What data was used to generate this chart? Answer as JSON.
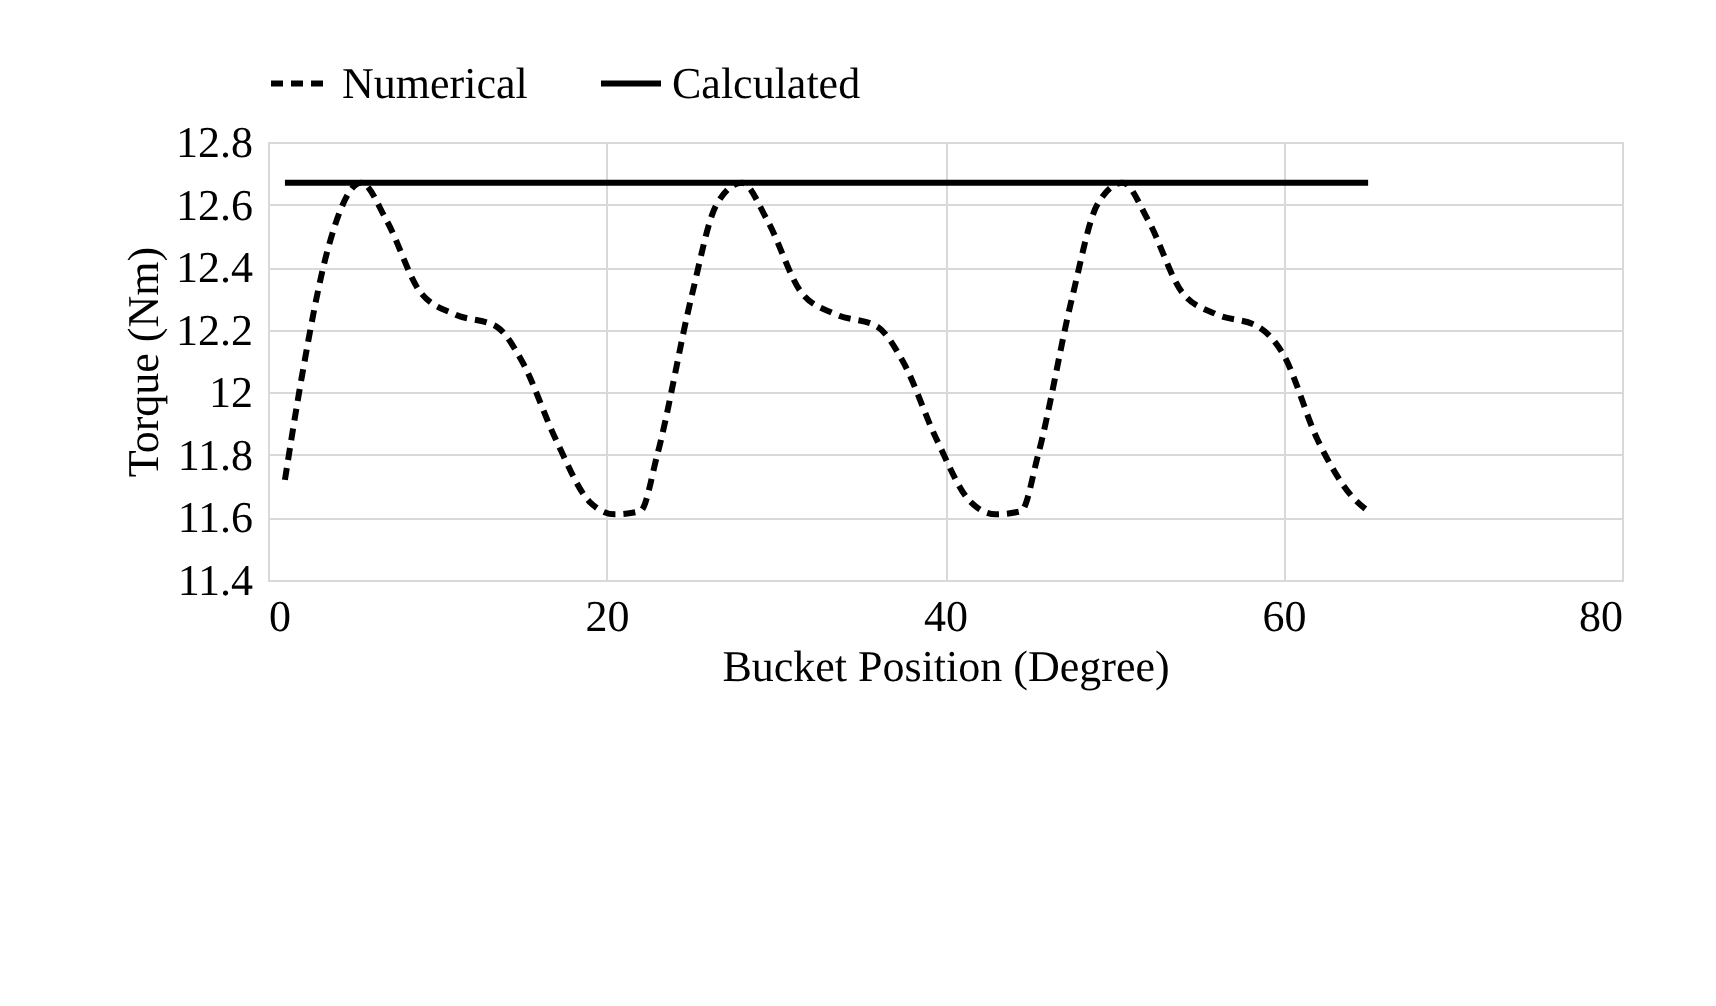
{
  "chart_data": {
    "type": "line",
    "xlabel": "Bucket Position (Degree)",
    "ylabel": "Torque (Nm)",
    "xlim": [
      0,
      80
    ],
    "xticks": [
      0,
      20,
      40,
      60,
      80
    ],
    "ylim": [
      11.4,
      12.8
    ],
    "yticks": [
      11.4,
      11.6,
      11.8,
      12,
      12.2,
      12.4,
      12.6,
      12.8
    ],
    "grid": true,
    "legend": "top",
    "marker": "none",
    "series": [
      {
        "name": "Numerical",
        "color": "#000000",
        "line_style": "dashed",
        "x": [
          1,
          2,
          3.5,
          5.5,
          7,
          9,
          11,
          13.5,
          15,
          17,
          19,
          20.5,
          22,
          23,
          25,
          26.5,
          28,
          29.5,
          31.5,
          33.5,
          36,
          37.5,
          39.5,
          41.5,
          43,
          44.5,
          45.5,
          47.5,
          49,
          50.5,
          52,
          54,
          56,
          58.5,
          60,
          62,
          64,
          65
        ],
        "values": [
          11.72,
          12.05,
          12.45,
          12.67,
          12.55,
          12.32,
          12.25,
          12.21,
          12.1,
          11.85,
          11.65,
          11.61,
          11.62,
          11.8,
          12.3,
          12.6,
          12.67,
          12.55,
          12.32,
          12.25,
          12.21,
          12.1,
          11.85,
          11.65,
          11.61,
          11.62,
          11.8,
          12.3,
          12.6,
          12.67,
          12.55,
          12.32,
          12.25,
          12.21,
          12.12,
          11.85,
          11.67,
          11.62
        ]
      },
      {
        "name": "Calculated",
        "color": "#000000",
        "line_style": "solid",
        "x": [
          1,
          65
        ],
        "values": [
          12.67,
          12.67
        ]
      }
    ]
  }
}
